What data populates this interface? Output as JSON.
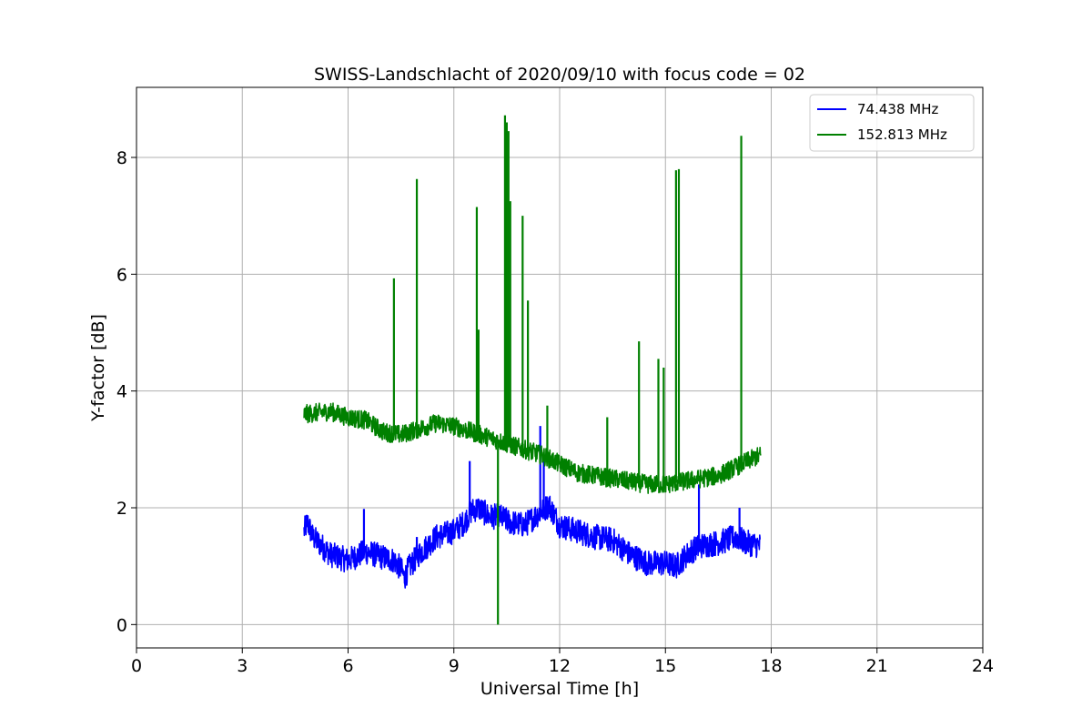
{
  "chart_data": {
    "type": "line",
    "title": "SWISS-Landschlacht of 2020/09/10 with focus code = 02",
    "xlabel": "Universal Time [h]",
    "ylabel": "Y-factor [dB]",
    "xlim": [
      0,
      24
    ],
    "ylim": [
      -0.4,
      9.2
    ],
    "x_ticks": [
      0,
      3,
      6,
      9,
      12,
      15,
      18,
      21,
      24
    ],
    "y_ticks": [
      0,
      2,
      4,
      6,
      8
    ],
    "x_tick_labels": [
      "0",
      "3",
      "6",
      "9",
      "12",
      "15",
      "18",
      "21",
      "24"
    ],
    "y_tick_labels": [
      "0",
      "2",
      "4",
      "6",
      "8"
    ],
    "grid": true,
    "legend_position": "top-right",
    "series": [
      {
        "name": " 74.438 MHz",
        "color": "#0000ff",
        "x": [
          4.75,
          4.85,
          5.0,
          5.5,
          6.0,
          6.5,
          7.0,
          7.3,
          7.5,
          7.6,
          7.7,
          8.0,
          8.5,
          9.0,
          9.3,
          9.5,
          9.7,
          10.0,
          10.3,
          10.6,
          11.0,
          11.5,
          11.7,
          12.0,
          12.5,
          13.0,
          13.5,
          14.0,
          14.5,
          15.0,
          15.3,
          15.7,
          16.0,
          16.5,
          17.0,
          17.3,
          17.7
        ],
        "y": [
          1.6,
          1.75,
          1.5,
          1.2,
          1.1,
          1.25,
          1.15,
          1.1,
          0.95,
          0.8,
          0.95,
          1.2,
          1.5,
          1.6,
          1.75,
          1.95,
          2.0,
          1.85,
          1.85,
          1.75,
          1.7,
          1.95,
          2.05,
          1.7,
          1.6,
          1.5,
          1.45,
          1.2,
          1.05,
          1.05,
          1.0,
          1.25,
          1.35,
          1.4,
          1.5,
          1.4,
          1.35
        ],
        "spikes": [
          {
            "x": 6.45,
            "y": 1.98
          },
          {
            "x": 7.95,
            "y": 1.5
          },
          {
            "x": 9.45,
            "y": 2.8
          },
          {
            "x": 11.45,
            "y": 3.4
          },
          {
            "x": 11.55,
            "y": 2.9
          },
          {
            "x": 15.95,
            "y": 2.4
          },
          {
            "x": 17.1,
            "y": 2.0
          }
        ]
      },
      {
        "name": "152.813 MHz",
        "color": "#008000",
        "x": [
          4.75,
          5.0,
          5.5,
          6.0,
          6.5,
          7.0,
          7.5,
          8.0,
          8.5,
          9.0,
          9.5,
          10.0,
          10.5,
          11.0,
          11.5,
          12.0,
          12.5,
          13.0,
          13.5,
          14.0,
          14.5,
          15.0,
          15.5,
          16.0,
          16.5,
          17.0,
          17.5,
          17.7
        ],
        "y": [
          3.6,
          3.62,
          3.65,
          3.55,
          3.5,
          3.3,
          3.25,
          3.35,
          3.45,
          3.4,
          3.3,
          3.2,
          3.1,
          3.0,
          2.9,
          2.75,
          2.6,
          2.55,
          2.5,
          2.45,
          2.4,
          2.4,
          2.45,
          2.5,
          2.55,
          2.7,
          2.85,
          2.9
        ],
        "spikes": [
          {
            "x": 7.3,
            "y": 5.93
          },
          {
            "x": 7.95,
            "y": 7.63
          },
          {
            "x": 9.65,
            "y": 7.15
          },
          {
            "x": 9.7,
            "y": 5.05
          },
          {
            "x": 10.45,
            "y": 8.72
          },
          {
            "x": 10.5,
            "y": 8.6
          },
          {
            "x": 10.55,
            "y": 8.45
          },
          {
            "x": 10.6,
            "y": 7.25
          },
          {
            "x": 10.95,
            "y": 7.0
          },
          {
            "x": 11.1,
            "y": 5.55
          },
          {
            "x": 11.65,
            "y": 3.75
          },
          {
            "x": 13.35,
            "y": 3.55
          },
          {
            "x": 14.25,
            "y": 4.85
          },
          {
            "x": 14.8,
            "y": 4.55
          },
          {
            "x": 14.95,
            "y": 4.4
          },
          {
            "x": 15.3,
            "y": 7.78
          },
          {
            "x": 15.38,
            "y": 7.8
          },
          {
            "x": 17.15,
            "y": 8.37
          }
        ],
        "dips": [
          {
            "x": 10.25,
            "y": 0.0
          }
        ]
      }
    ]
  }
}
